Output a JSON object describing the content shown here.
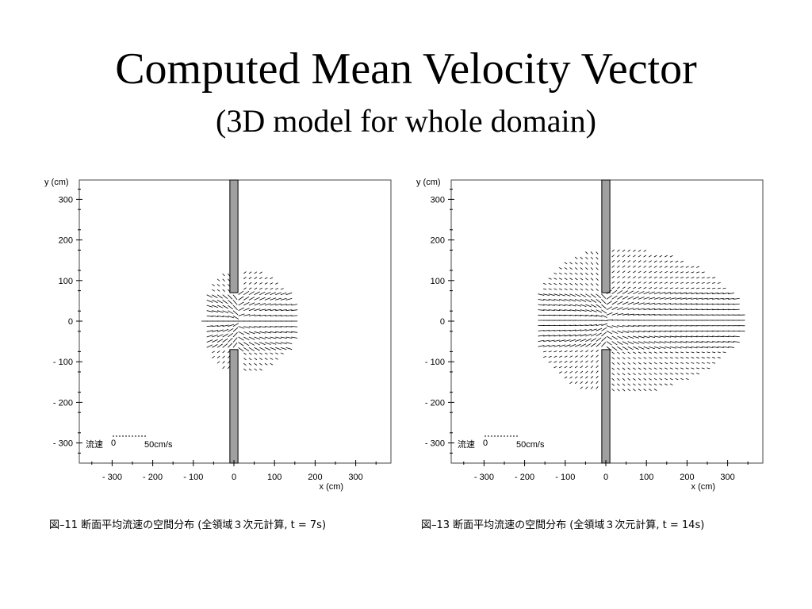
{
  "slide": {
    "title": "Computed Mean Velocity Vector",
    "subtitle": "(3D model for whole domain)"
  },
  "colors": {
    "wall": "#a0a0a0",
    "frame": "#444444",
    "vector": "#000000"
  },
  "chart_data": [
    {
      "type": "vector-field",
      "xlabel": "x (cm)",
      "ylabel": "y (cm)",
      "xlim": [
        -380,
        380
      ],
      "ylim": [
        -350,
        350
      ],
      "x_ticks": [
        "-300",
        "-200",
        "-100",
        "0",
        "100",
        "200",
        "300"
      ],
      "y_ticks": [
        "300",
        "200",
        "100",
        "0",
        "-100",
        "-200",
        "-300"
      ],
      "legend": {
        "label": "流速",
        "zero": "0",
        "scale": "50cm/s",
        "scale_value": 50
      },
      "caption": "図–11  断面平均流速の空間分布 (全領域３次元計算, t = 7s)",
      "time_s": 7,
      "vector_extent_cm": {
        "xmin": -80,
        "xmax": 150,
        "ymax": 130
      },
      "walls": [
        {
          "x0": -10,
          "x1": 10,
          "y0": 70,
          "y1": 350
        },
        {
          "x0": -10,
          "x1": 10,
          "y0": -350,
          "y1": -70
        }
      ]
    },
    {
      "type": "vector-field",
      "xlabel": "x (cm)",
      "ylabel": "y (cm)",
      "xlim": [
        -380,
        380
      ],
      "ylim": [
        -350,
        350
      ],
      "x_ticks": [
        "-300",
        "-200",
        "-100",
        "0",
        "100",
        "200",
        "300"
      ],
      "y_ticks": [
        "300",
        "200",
        "100",
        "0",
        "-100",
        "-200",
        "-300"
      ],
      "legend": {
        "label": "流速",
        "zero": "0",
        "scale": "50cm/s",
        "scale_value": 50
      },
      "caption": "図–13  断面平均流速の空間分布 (全領域３次元計算, t = 14s)",
      "time_s": 14,
      "vector_extent_cm": {
        "xmin": -180,
        "xmax": 330,
        "ymax": 180
      },
      "walls": [
        {
          "x0": -10,
          "x1": 10,
          "y0": 70,
          "y1": 350
        },
        {
          "x0": -10,
          "x1": 10,
          "y0": -350,
          "y1": -70
        }
      ]
    }
  ]
}
